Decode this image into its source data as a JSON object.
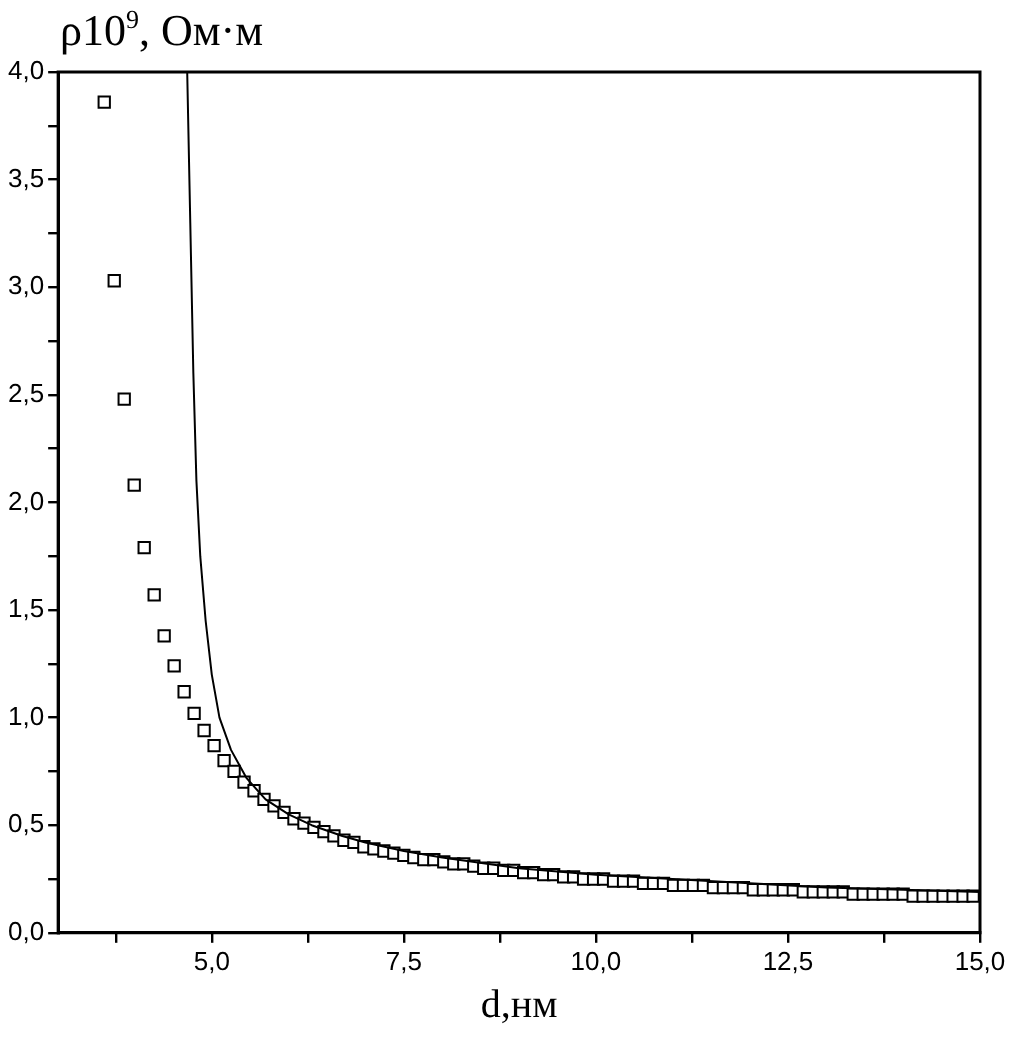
{
  "chart_data": {
    "type": "scatter",
    "xlabel": "d,нм",
    "ylabel": "ρ10$^{9}$, Ом·м",
    "xlim": [
      3,
      15
    ],
    "ylim": [
      0,
      4
    ],
    "xticks": [
      {
        "value": 3.75,
        "label": null
      },
      {
        "value": 5,
        "label": "5,0"
      },
      {
        "value": 6.25,
        "label": null
      },
      {
        "value": 7.5,
        "label": "7,5"
      },
      {
        "value": 8.75,
        "label": null
      },
      {
        "value": 10,
        "label": "10,0"
      },
      {
        "value": 11.25,
        "label": null
      },
      {
        "value": 12.5,
        "label": "12,5"
      },
      {
        "value": 13.75,
        "label": null
      },
      {
        "value": 15,
        "label": "15,0"
      }
    ],
    "yticks": [
      {
        "value": 0,
        "label": "0,0"
      },
      {
        "value": 0.25,
        "label": null
      },
      {
        "value": 0.5,
        "label": "0,5"
      },
      {
        "value": 0.75,
        "label": null
      },
      {
        "value": 1,
        "label": "1,0"
      },
      {
        "value": 1.25,
        "label": null
      },
      {
        "value": 1.5,
        "label": "1,5"
      },
      {
        "value": 1.75,
        "label": null
      },
      {
        "value": 2,
        "label": "2,0"
      },
      {
        "value": 2.25,
        "label": null
      },
      {
        "value": 2.5,
        "label": "2,5"
      },
      {
        "value": 2.75,
        "label": null
      },
      {
        "value": 3,
        "label": "3,0"
      },
      {
        "value": 3.25,
        "label": null
      },
      {
        "value": 3.5,
        "label": "3,5"
      },
      {
        "value": 3.75,
        "label": null
      },
      {
        "value": 4,
        "label": "4,0"
      }
    ],
    "grid": false,
    "legend": false,
    "series": [
      {
        "marker": "square",
        "color": "#000000",
        "x": [
          3.6,
          3.73,
          3.86,
          3.99,
          4.12,
          4.25,
          4.38,
          4.51,
          4.64,
          4.77,
          4.9,
          5.03,
          5.16,
          5.29,
          5.42,
          5.55,
          5.68,
          5.81,
          5.94,
          6.07,
          6.2,
          6.33,
          6.46,
          6.59,
          6.72,
          6.85,
          6.98,
          7.11,
          7.24,
          7.37,
          7.5,
          7.63,
          7.76,
          7.89,
          8.02,
          8.15,
          8.28,
          8.41,
          8.54,
          8.67,
          8.8,
          8.93,
          9.06,
          9.19,
          9.32,
          9.45,
          9.58,
          9.71,
          9.84,
          9.97,
          10.1,
          10.23,
          10.36,
          10.49,
          10.62,
          10.75,
          10.88,
          11.01,
          11.14,
          11.27,
          11.4,
          11.53,
          11.66,
          11.79,
          11.92,
          12.05,
          12.18,
          12.31,
          12.44,
          12.57,
          12.7,
          12.83,
          12.96,
          13.09,
          13.22,
          13.35,
          13.48,
          13.61,
          13.74,
          13.87,
          14.0,
          14.13,
          14.26,
          14.39,
          14.52,
          14.65,
          14.78,
          14.91
        ],
        "values": [
          3.86,
          3.03,
          2.48,
          2.08,
          1.79,
          1.57,
          1.38,
          1.24,
          1.12,
          1.02,
          0.94,
          0.87,
          0.8,
          0.75,
          0.7,
          0.66,
          0.62,
          0.59,
          0.56,
          0.53,
          0.51,
          0.49,
          0.47,
          0.45,
          0.43,
          0.42,
          0.4,
          0.39,
          0.38,
          0.37,
          0.36,
          0.35,
          0.34,
          0.34,
          0.33,
          0.32,
          0.32,
          0.31,
          0.3,
          0.3,
          0.29,
          0.29,
          0.28,
          0.28,
          0.27,
          0.27,
          0.26,
          0.26,
          0.25,
          0.25,
          0.25,
          0.24,
          0.24,
          0.24,
          0.23,
          0.23,
          0.23,
          0.22,
          0.22,
          0.22,
          0.22,
          0.21,
          0.21,
          0.21,
          0.21,
          0.2,
          0.2,
          0.2,
          0.2,
          0.2,
          0.19,
          0.19,
          0.19,
          0.19,
          0.19,
          0.18,
          0.18,
          0.18,
          0.18,
          0.18,
          0.18,
          0.17,
          0.17,
          0.17,
          0.17,
          0.17,
          0.17,
          0.17
        ]
      },
      {
        "type": "line",
        "marker": "none",
        "line_style": "solid",
        "color": "#000000",
        "x": [
          4.68,
          4.72,
          4.76,
          4.8,
          4.85,
          4.92,
          5.0,
          5.1,
          5.25,
          5.45,
          5.7,
          6.0,
          6.3,
          6.7,
          7.0,
          7.5,
          8.0,
          9.0,
          10.0,
          11.0,
          12.0,
          13.0,
          14.0,
          15.0
        ],
        "values": [
          4.0,
          3.3,
          2.6,
          2.1,
          1.75,
          1.45,
          1.2,
          1.0,
          0.85,
          0.72,
          0.62,
          0.55,
          0.5,
          0.45,
          0.42,
          0.38,
          0.35,
          0.3,
          0.27,
          0.25,
          0.23,
          0.21,
          0.2,
          0.19
        ]
      }
    ]
  }
}
